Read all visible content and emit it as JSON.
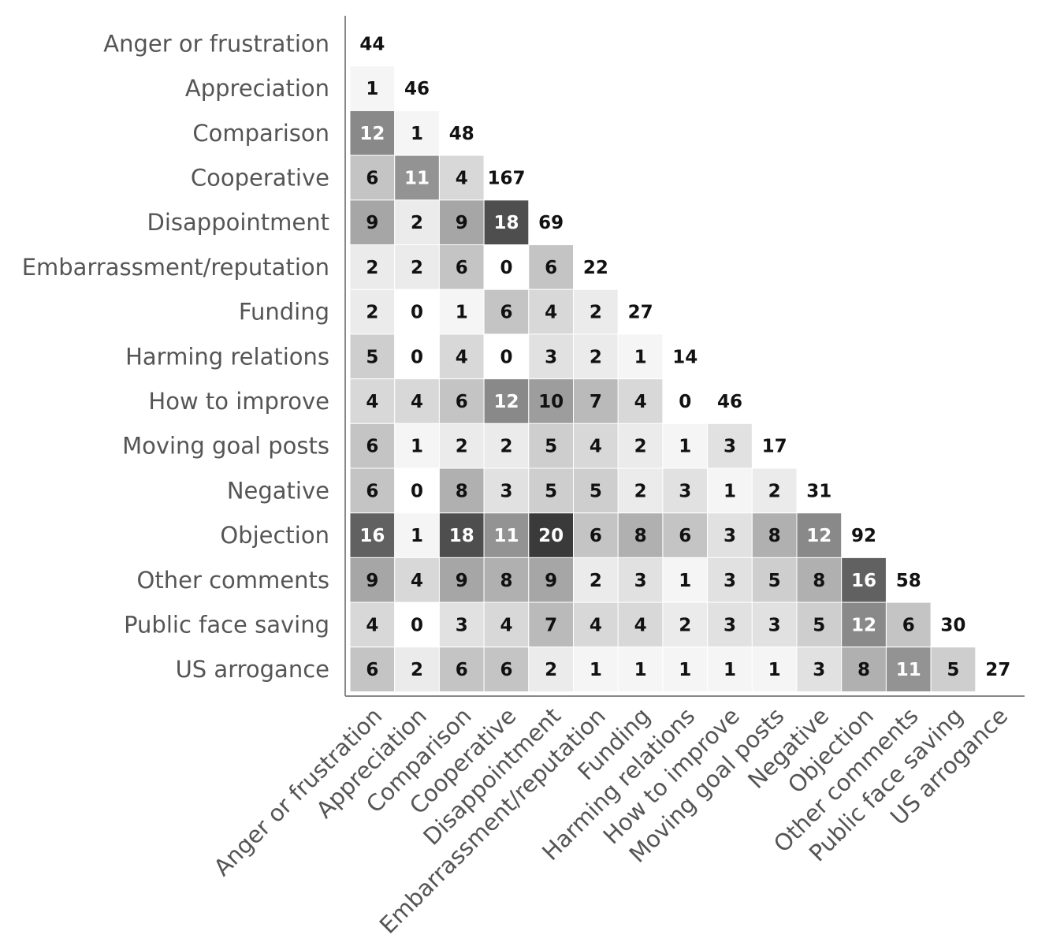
{
  "chart_data": {
    "type": "heatmap",
    "title": "",
    "xlabel": "",
    "ylabel": "",
    "categories": [
      "Anger or frustration",
      "Appreciation",
      "Comparison",
      "Cooperative",
      "Disappointment",
      "Embarrassment/reputation",
      "Funding",
      "Harming relations",
      "How to improve",
      "Moving goal posts",
      "Negative",
      "Objection",
      "Other comments",
      "Public face saving",
      "US arrogance"
    ],
    "matrix": [
      [
        44
      ],
      [
        1,
        46
      ],
      [
        12,
        1,
        48
      ],
      [
        6,
        11,
        4,
        167
      ],
      [
        9,
        2,
        9,
        18,
        69
      ],
      [
        2,
        2,
        6,
        0,
        6,
        22
      ],
      [
        2,
        0,
        1,
        6,
        4,
        2,
        27
      ],
      [
        5,
        0,
        4,
        0,
        3,
        2,
        1,
        14
      ],
      [
        4,
        4,
        6,
        12,
        10,
        7,
        4,
        0,
        46
      ],
      [
        6,
        1,
        2,
        2,
        5,
        4,
        2,
        1,
        3,
        17
      ],
      [
        6,
        0,
        8,
        3,
        5,
        5,
        2,
        3,
        1,
        2,
        31
      ],
      [
        16,
        1,
        18,
        11,
        20,
        6,
        8,
        6,
        3,
        8,
        12,
        92
      ],
      [
        9,
        4,
        9,
        8,
        9,
        2,
        3,
        1,
        3,
        5,
        8,
        16,
        58
      ],
      [
        4,
        0,
        3,
        4,
        7,
        4,
        4,
        2,
        3,
        3,
        5,
        12,
        6,
        30
      ],
      [
        6,
        2,
        6,
        6,
        2,
        1,
        1,
        1,
        1,
        1,
        3,
        8,
        11,
        5,
        27
      ]
    ],
    "diagonal_shaded": false,
    "color_scale": "grayscale",
    "colors": {
      "low": "#ffffff",
      "high": "#3a3a3a",
      "text_dark": "#111111",
      "text_light": "#ffffff",
      "axis": "#888888",
      "label": "#555555"
    }
  }
}
